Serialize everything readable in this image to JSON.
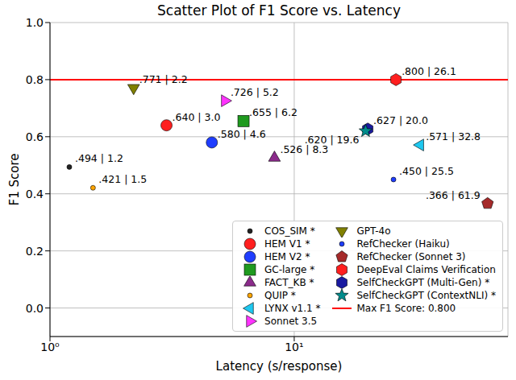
{
  "chart_data": {
    "type": "scatter",
    "title": "Scatter Plot of F1 Score vs. Latency",
    "xlabel": "Latency (s/response)",
    "ylabel": "F1 Score",
    "log": "x",
    "grid": true,
    "legend": "lower right",
    "data_labels": true,
    "xlim": [
      1,
      75
    ],
    "xticks": [
      {
        "value": 1,
        "label": "10⁰"
      },
      {
        "value": 10,
        "label": "10¹"
      }
    ],
    "ylim": [
      -0.1,
      1.0
    ],
    "yticks": [
      {
        "value": 0,
        "label": "0.0"
      },
      {
        "value": 0.2,
        "label": "0.2"
      },
      {
        "value": 0.4,
        "label": "0.4"
      },
      {
        "value": 0.6,
        "label": "0.6"
      },
      {
        "value": 0.8,
        "label": "0.8"
      },
      {
        "value": 1.0,
        "label": "1.0"
      }
    ],
    "series": [
      {
        "name": "COS_SIM *",
        "color": "#222222",
        "marker": "point",
        "x": [
          1.2
        ],
        "values": [
          0.494
        ],
        "value_labels": [
          ".494 | 1.2"
        ]
      },
      {
        "name": "HEM V1 *",
        "color": "#ff1f1f",
        "marker": "circle",
        "x": [
          3.0
        ],
        "values": [
          0.64
        ],
        "value_labels": [
          ".640 | 3.0"
        ]
      },
      {
        "name": "HEM V2 *",
        "color": "#1f3dff",
        "marker": "circle",
        "x": [
          4.6
        ],
        "values": [
          0.58
        ],
        "value_labels": [
          ".580 | 4.6"
        ]
      },
      {
        "name": "GC-large *",
        "color": "#1f9a1f",
        "marker": "square",
        "x": [
          6.2
        ],
        "values": [
          0.655
        ],
        "value_labels": [
          ".655 | 6.2"
        ]
      },
      {
        "name": "FACT_KB *",
        "color": "#8b2b8b",
        "marker": "triangle_up",
        "x": [
          8.3
        ],
        "values": [
          0.526
        ],
        "value_labels": [
          ".526 | 8.3"
        ]
      },
      {
        "name": "QUIP *",
        "color": "#ffa500",
        "marker": "point",
        "x": [
          1.5
        ],
        "values": [
          0.421
        ],
        "value_labels": [
          ".421 | 1.5"
        ]
      },
      {
        "name": "LYNX v1.1 *",
        "color": "#1ec8f0",
        "marker": "triangle_left",
        "x": [
          32.8
        ],
        "values": [
          0.571
        ],
        "value_labels": [
          ".571 | 32.8"
        ]
      },
      {
        "name": "Sonnet 3.5",
        "color": "#ff33ff",
        "marker": "triangle_right",
        "x": [
          5.2
        ],
        "values": [
          0.726
        ],
        "value_labels": [
          ".726 | 5.2"
        ]
      },
      {
        "name": "GPT-4o",
        "color": "#808000",
        "marker": "triangle_down",
        "x": [
          2.2
        ],
        "values": [
          0.771
        ],
        "value_labels": [
          ".771 | 2.2"
        ]
      },
      {
        "name": "RefChecker (Haiku)",
        "color": "#1f3dff",
        "marker": "point",
        "x": [
          25.5
        ],
        "values": [
          0.45
        ],
        "value_labels": [
          ".450 | 25.5"
        ]
      },
      {
        "name": "RefChecker (Sonnet 3)",
        "color": "#a52a2a",
        "marker": "pentagon",
        "x": [
          61.9
        ],
        "values": [
          0.366
        ],
        "value_labels": [
          ".366 | 61.9"
        ]
      },
      {
        "name": "DeepEval Claims Verification",
        "color": "#ff1f1f",
        "marker": "hexagon",
        "x": [
          26.1
        ],
        "values": [
          0.8
        ],
        "value_labels": [
          ".800 | 26.1"
        ]
      },
      {
        "name": "SelfCheckGPT (Multi-Gen) *",
        "color": "#1a1aa0",
        "marker": "hexagon",
        "x": [
          20.0
        ],
        "values": [
          0.627
        ],
        "value_labels": [
          ".627 | 20.0"
        ]
      },
      {
        "name": "SelfCheckGPT (ContextNLI) *",
        "color": "#008b8b",
        "marker": "star",
        "x": [
          19.6
        ],
        "values": [
          0.62
        ],
        "value_labels": [
          ".620 | 19.6"
        ]
      },
      {
        "name": "Max F1 Score: 0.800",
        "type": "hline",
        "color": "#ff0000",
        "line_style": "solid",
        "values": [
          0.8
        ]
      }
    ]
  }
}
